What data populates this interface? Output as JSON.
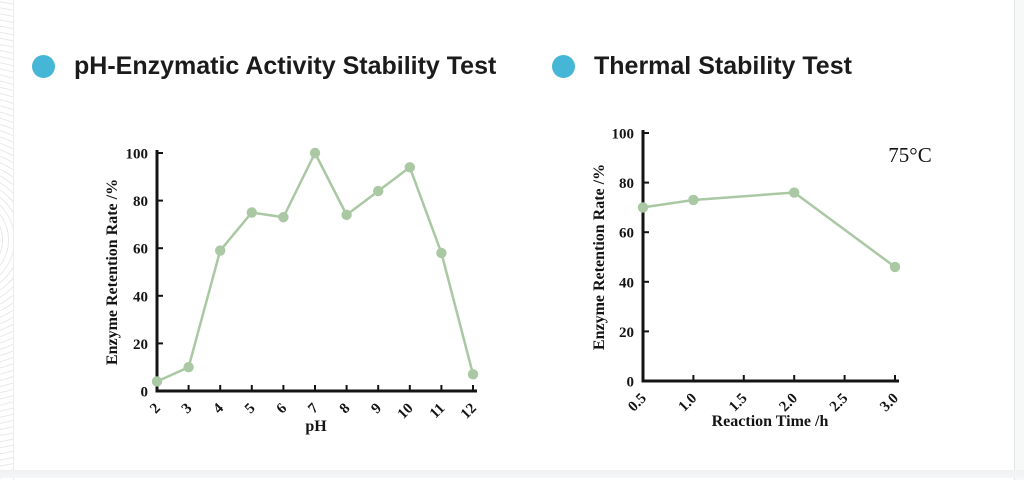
{
  "slide": {
    "background_color": "#ffffff",
    "accent_color": "#45b6d6",
    "series_color": "#a9c8a3",
    "axis_color": "#141414",
    "text_color": "#1b1b1b"
  },
  "chart_data": [
    {
      "type": "line",
      "title": "pH-Enzymatic Activity Stability Test",
      "xlabel": "pH",
      "ylabel": "Enzyme Retention Rate /%",
      "x": [
        2,
        3,
        4,
        5,
        6,
        7,
        8,
        9,
        10,
        11,
        12
      ],
      "values": [
        4,
        10,
        59,
        75,
        73,
        100,
        74,
        84,
        94,
        58,
        7
      ],
      "xticks": [
        "2",
        "3",
        "4",
        "5",
        "6",
        "7",
        "8",
        "9",
        "10",
        "11",
        "12"
      ],
      "xtick_values": [
        2,
        3,
        4,
        5,
        6,
        7,
        8,
        9,
        10,
        11,
        12
      ],
      "yticks": [
        0,
        20,
        40,
        60,
        80,
        100
      ],
      "ylim": [
        0,
        100
      ],
      "grid": false,
      "legend": "none",
      "marker": "circle"
    },
    {
      "type": "line",
      "title": "Thermal Stability Test",
      "xlabel": "Reaction Time /h",
      "ylabel": "Enzyme Retention Rate /%",
      "x": [
        0.5,
        1.0,
        2.0,
        3.0
      ],
      "values": [
        70,
        73,
        76,
        46
      ],
      "xticks": [
        "0.5",
        "1.0",
        "1.5",
        "2.0",
        "2.5",
        "3.0"
      ],
      "xtick_values": [
        0.5,
        1.0,
        1.5,
        2.0,
        2.5,
        3.0
      ],
      "yticks": [
        0,
        20,
        40,
        60,
        80,
        100
      ],
      "ylim": [
        0,
        100
      ],
      "annotation": "75°C",
      "grid": false,
      "legend": "none",
      "marker": "circle"
    }
  ]
}
